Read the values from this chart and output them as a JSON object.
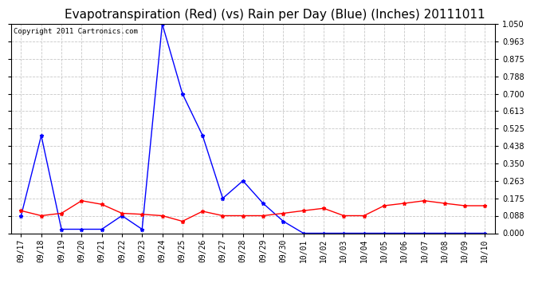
{
  "title": "Evapotranspiration (Red) (vs) Rain per Day (Blue) (Inches) 20111011",
  "copyright": "Copyright 2011 Cartronics.com",
  "x_labels": [
    "09/17",
    "09/18",
    "09/19",
    "09/20",
    "09/21",
    "09/22",
    "09/23",
    "09/24",
    "09/25",
    "09/26",
    "09/27",
    "09/28",
    "09/29",
    "09/30",
    "10/01",
    "10/02",
    "10/03",
    "10/04",
    "10/05",
    "10/06",
    "10/07",
    "10/08",
    "10/09",
    "10/10"
  ],
  "blue_data": [
    0.088,
    0.49,
    0.02,
    0.02,
    0.02,
    0.088,
    0.02,
    1.05,
    0.7,
    0.49,
    0.175,
    0.263,
    0.15,
    0.06,
    0.0,
    0.0,
    0.0,
    0.0,
    0.0,
    0.0,
    0.0,
    0.0,
    0.0,
    0.0
  ],
  "red_data": [
    0.113,
    0.088,
    0.1,
    0.163,
    0.145,
    0.1,
    0.095,
    0.088,
    0.06,
    0.11,
    0.088,
    0.088,
    0.088,
    0.1,
    0.113,
    0.125,
    0.088,
    0.088,
    0.138,
    0.15,
    0.163,
    0.15,
    0.138,
    0.138
  ],
  "ylim": [
    0.0,
    1.05
  ],
  "yticks": [
    0.0,
    0.088,
    0.175,
    0.263,
    0.35,
    0.438,
    0.525,
    0.613,
    0.7,
    0.788,
    0.875,
    0.963,
    1.05
  ],
  "blue_color": "#0000ff",
  "red_color": "#ff0000",
  "bg_color": "#ffffff",
  "grid_color": "#c8c8c8",
  "title_fontsize": 11,
  "copyright_fontsize": 6.5,
  "tick_fontsize": 7
}
